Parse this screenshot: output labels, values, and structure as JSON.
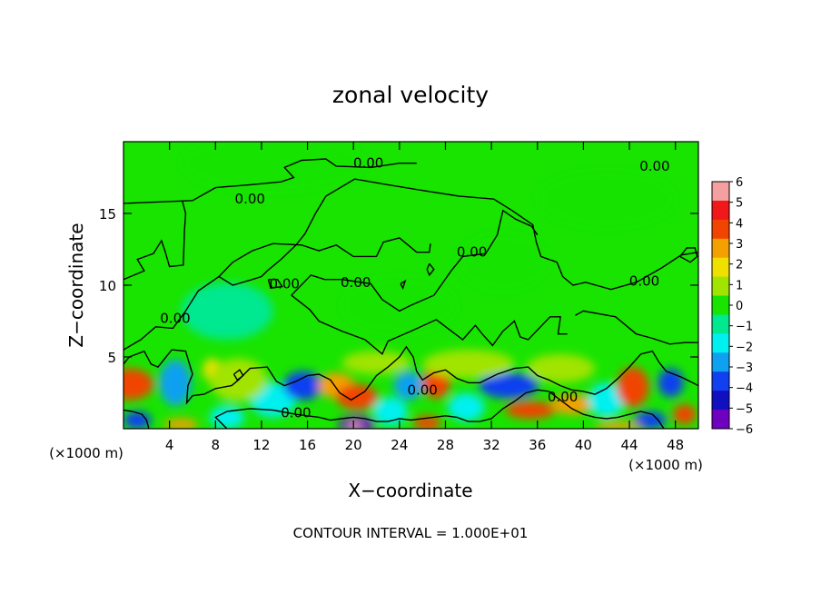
{
  "chart_data": {
    "type": "heatmap",
    "title": "zonal velocity",
    "xlabel": "X−coordinate",
    "ylabel": "Z−coordinate",
    "x_unit": "(×1000 m)",
    "x_unit_right": "(×1000 m)",
    "xlim": [
      0,
      50
    ],
    "ylim": [
      0,
      20
    ],
    "x_ticks": [
      4,
      8,
      12,
      16,
      20,
      24,
      28,
      32,
      36,
      40,
      44,
      48
    ],
    "x_tick_labels": [
      "4",
      "8",
      "12",
      "16",
      "20",
      "24",
      "28",
      "32",
      "36",
      "40",
      "44",
      "48"
    ],
    "y_ticks": [
      5,
      10,
      15
    ],
    "y_tick_labels": [
      "5",
      "10",
      "15"
    ],
    "contour_interval_text": "CONTOUR INTERVAL = 1.000E+01",
    "colorbar": {
      "levels": [
        6,
        5,
        4,
        3,
        2,
        1,
        0,
        -1,
        -2,
        -3,
        -4,
        -5,
        -6
      ],
      "labels": [
        "6",
        "5",
        "4",
        "3",
        "2",
        "1",
        "0",
        "−1",
        "−2",
        "−3",
        "−4",
        "−5",
        "−6"
      ],
      "colors": [
        "#f4a0a0",
        "#f01818",
        "#f04400",
        "#f4a000",
        "#f0e000",
        "#a0e400",
        "#18e400",
        "#00e890",
        "#00f0f0",
        "#10a0f0",
        "#1040f0",
        "#1010c0",
        "#7000c0"
      ]
    },
    "contour_labels": [
      {
        "text": "0.00",
        "x": 21.3,
        "y": 18.5
      },
      {
        "text": "0.00",
        "x": 46.2,
        "y": 18.3
      },
      {
        "text": "0.00",
        "x": 11.0,
        "y": 16.0
      },
      {
        "text": "0.00",
        "x": 30.3,
        "y": 12.3
      },
      {
        "text": "0.00",
        "x": 14.0,
        "y": 10.1
      },
      {
        "text": "0.00",
        "x": 20.2,
        "y": 10.2
      },
      {
        "text": "0.00",
        "x": 45.3,
        "y": 10.3
      },
      {
        "text": "0.00",
        "x": 4.5,
        "y": 7.7
      },
      {
        "text": "0.00",
        "x": 26.0,
        "y": 2.7
      },
      {
        "text": "0.00",
        "x": 38.2,
        "y": 2.2
      },
      {
        "text": "0.00",
        "x": 15.0,
        "y": 1.1
      }
    ],
    "cells": [
      {
        "x": 0.6,
        "y": 3.1,
        "value": 4.2,
        "sx": 2.0,
        "sy": 1.1
      },
      {
        "x": 1.2,
        "y": 0.6,
        "value": -3.8,
        "sx": 1.2,
        "sy": 0.6
      },
      {
        "x": 4.5,
        "y": 3.2,
        "value": -2.6,
        "sx": 1.4,
        "sy": 1.6
      },
      {
        "x": 7.7,
        "y": 4.1,
        "value": 2.4,
        "sx": 0.8,
        "sy": 0.8
      },
      {
        "x": 5.0,
        "y": 0.3,
        "value": 2.6,
        "sx": 1.5,
        "sy": 0.4
      },
      {
        "x": 9.0,
        "y": 0.8,
        "value": -1.6,
        "sx": 1.5,
        "sy": 0.8
      },
      {
        "x": 13.0,
        "y": 2.0,
        "value": -2.0,
        "sx": 2.0,
        "sy": 1.2
      },
      {
        "x": 15.6,
        "y": 3.0,
        "value": -3.8,
        "sx": 1.7,
        "sy": 1.0
      },
      {
        "x": 18.5,
        "y": 3.0,
        "value": 3.2,
        "sx": 1.6,
        "sy": 0.9
      },
      {
        "x": 20.3,
        "y": 2.2,
        "value": 3.6,
        "sx": 1.8,
        "sy": 0.9
      },
      {
        "x": 20.3,
        "y": 0.3,
        "value": -5.6,
        "sx": 1.6,
        "sy": 0.6
      },
      {
        "x": 20.1,
        "y": 0.2,
        "value": 6.0,
        "sx": 0.6,
        "sy": 0.25
      },
      {
        "x": 23.2,
        "y": 1.2,
        "value": -2.0,
        "sx": 1.5,
        "sy": 1.0
      },
      {
        "x": 24.8,
        "y": 3.0,
        "value": -3.5,
        "sx": 1.3,
        "sy": 1.0
      },
      {
        "x": 27.2,
        "y": 3.2,
        "value": 4.0,
        "sx": 1.2,
        "sy": 1.1
      },
      {
        "x": 26.4,
        "y": 0.4,
        "value": 3.5,
        "sx": 1.2,
        "sy": 0.5
      },
      {
        "x": 29.8,
        "y": 1.5,
        "value": -2.0,
        "sx": 1.6,
        "sy": 1.0
      },
      {
        "x": 33.5,
        "y": 3.0,
        "value": -4.3,
        "sx": 2.6,
        "sy": 0.9
      },
      {
        "x": 35.4,
        "y": 1.3,
        "value": 3.6,
        "sx": 2.2,
        "sy": 0.6
      },
      {
        "x": 39.0,
        "y": 1.7,
        "value": 2.6,
        "sx": 1.8,
        "sy": 0.7
      },
      {
        "x": 42.0,
        "y": 2.0,
        "value": -2.0,
        "sx": 1.6,
        "sy": 1.2
      },
      {
        "x": 44.3,
        "y": 2.9,
        "value": 3.8,
        "sx": 1.4,
        "sy": 1.4
      },
      {
        "x": 45.8,
        "y": 0.6,
        "value": -4.0,
        "sx": 1.4,
        "sy": 0.6
      },
      {
        "x": 47.6,
        "y": 3.2,
        "value": -3.8,
        "sx": 1.1,
        "sy": 1.0
      },
      {
        "x": 48.8,
        "y": 1.0,
        "value": 4.0,
        "sx": 1.0,
        "sy": 0.7
      },
      {
        "x": 43.0,
        "y": 0.2,
        "value": 2.5,
        "sx": 2.0,
        "sy": 0.3
      },
      {
        "x": 10.0,
        "y": 3.4,
        "value": 1.2,
        "sx": 2.5,
        "sy": 1.5
      },
      {
        "x": 30.0,
        "y": 4.5,
        "value": 1.0,
        "sx": 4.0,
        "sy": 1.0
      },
      {
        "x": 38.0,
        "y": 4.2,
        "value": 1.2,
        "sx": 3.0,
        "sy": 1.0
      },
      {
        "x": 22.0,
        "y": 4.6,
        "value": 1.2,
        "sx": 3.0,
        "sy": 0.8
      },
      {
        "x": 9.0,
        "y": 8.2,
        "value": -0.6,
        "sx": 4.0,
        "sy": 2.0
      },
      {
        "x": 24.0,
        "y": 8.6,
        "value": -0.5,
        "sx": 5.0,
        "sy": 2.0
      },
      {
        "x": 33.0,
        "y": 11.6,
        "value": -0.4,
        "sx": 4.0,
        "sy": 2.0
      },
      {
        "x": 13.0,
        "y": 18.5,
        "value": 0.3,
        "sx": 8.0,
        "sy": 2.0
      },
      {
        "x": 42.0,
        "y": 16.0,
        "value": -0.3,
        "sx": 6.0,
        "sy": 2.0
      }
    ],
    "contours": [
      [
        [
          0,
          15.7
        ],
        [
          6,
          15.9
        ],
        [
          8,
          16.8
        ],
        [
          11,
          17.0
        ],
        [
          13.7,
          17.2
        ],
        [
          14.8,
          17.5
        ],
        [
          14.0,
          18.2
        ],
        [
          15.5,
          18.7
        ],
        [
          17.6,
          18.8
        ],
        [
          18.5,
          18.3
        ],
        [
          21.5,
          18.2
        ],
        [
          24.0,
          18.5
        ],
        [
          25.5,
          18.5
        ]
      ],
      [
        [
          0,
          10.4
        ],
        [
          1.8,
          11.0
        ],
        [
          1.2,
          11.8
        ],
        [
          2.6,
          12.2
        ],
        [
          3.3,
          13.1
        ],
        [
          3.6,
          12.4
        ],
        [
          4.0,
          11.3
        ],
        [
          5.2,
          11.4
        ],
        [
          5.3,
          13.8
        ],
        [
          5.4,
          15.0
        ],
        [
          5.1,
          15.9
        ]
      ],
      [
        [
          17.6,
          16.2
        ],
        [
          20.1,
          17.4
        ],
        [
          23.0,
          17.0
        ],
        [
          26.0,
          16.6
        ],
        [
          29.2,
          16.2
        ],
        [
          32.2,
          16.0
        ],
        [
          33.8,
          15.2
        ],
        [
          35.6,
          14.2
        ],
        [
          35.9,
          13.0
        ],
        [
          36.3,
          12.0
        ],
        [
          37.7,
          11.6
        ]
      ],
      [
        [
          17.6,
          16.2
        ],
        [
          16.7,
          15.0
        ],
        [
          15.8,
          13.6
        ],
        [
          15.0,
          12.8
        ],
        [
          13.7,
          11.8
        ],
        [
          12.5,
          11.0
        ],
        [
          12.0,
          10.6
        ],
        [
          11.2,
          10.4
        ],
        [
          9.5,
          10.0
        ],
        [
          8.3,
          10.6
        ],
        [
          6.5,
          9.6
        ],
        [
          5.4,
          8.2
        ],
        [
          4.3,
          7.0
        ],
        [
          2.8,
          7.1
        ],
        [
          1.5,
          6.2
        ],
        [
          0,
          5.5
        ]
      ],
      [
        [
          8.3,
          10.6
        ],
        [
          9.5,
          11.6
        ],
        [
          11.2,
          12.4
        ],
        [
          13.0,
          12.9
        ],
        [
          15.5,
          12.8
        ],
        [
          17.0,
          12.4
        ],
        [
          18.5,
          12.8
        ],
        [
          20.0,
          12.0
        ],
        [
          22.0,
          12.0
        ],
        [
          22.6,
          13.0
        ],
        [
          24.0,
          13.3
        ],
        [
          25.5,
          12.3
        ],
        [
          26.6,
          12.3
        ],
        [
          26.7,
          12.9
        ]
      ],
      [
        [
          14.6,
          9.3
        ],
        [
          16.3,
          10.7
        ],
        [
          17.5,
          10.4
        ],
        [
          19.0,
          10.4
        ],
        [
          21.5,
          10.1
        ],
        [
          22.5,
          9.0
        ],
        [
          24.0,
          8.2
        ],
        [
          25.0,
          8.6
        ],
        [
          27.0,
          9.3
        ],
        [
          28.5,
          11.0
        ],
        [
          29.5,
          12.0
        ],
        [
          31.5,
          12.2
        ],
        [
          32.5,
          13.5
        ],
        [
          33.0,
          15.2
        ],
        [
          34.1,
          14.6
        ],
        [
          35.5,
          14.1
        ],
        [
          36.0,
          13.5
        ]
      ],
      [
        [
          14.6,
          9.3
        ],
        [
          16.2,
          8.3
        ],
        [
          17.0,
          7.5
        ],
        [
          19.0,
          6.8
        ],
        [
          21.0,
          6.2
        ],
        [
          22.5,
          5.2
        ],
        [
          23.0,
          6.1
        ],
        [
          25.0,
          6.8
        ],
        [
          27.2,
          7.6
        ],
        [
          29.5,
          6.2
        ],
        [
          30.6,
          7.2
        ],
        [
          31.2,
          6.6
        ],
        [
          32.1,
          5.8
        ],
        [
          33.0,
          6.8
        ],
        [
          34.0,
          7.5
        ],
        [
          34.5,
          6.4
        ],
        [
          35.2,
          6.2
        ],
        [
          37.1,
          7.8
        ],
        [
          38.0,
          7.8
        ],
        [
          37.8,
          6.6
        ],
        [
          38.6,
          6.6
        ]
      ],
      [
        [
          37.7,
          11.6
        ],
        [
          38.2,
          10.6
        ],
        [
          39.1,
          10.0
        ],
        [
          40.2,
          10.2
        ],
        [
          42.4,
          9.7
        ],
        [
          44.6,
          10.2
        ],
        [
          46.8,
          11.2
        ],
        [
          48.5,
          12.1
        ],
        [
          50,
          12.3
        ]
      ],
      [
        [
          39.3,
          7.9
        ],
        [
          40.0,
          8.2
        ],
        [
          42.8,
          7.8
        ],
        [
          44.6,
          6.6
        ],
        [
          46.0,
          6.3
        ],
        [
          47.5,
          5.9
        ],
        [
          48.8,
          6.0
        ],
        [
          50,
          6.0
        ]
      ],
      [
        [
          0,
          4.5
        ],
        [
          0.5,
          5.0
        ],
        [
          1.8,
          5.4
        ],
        [
          2.4,
          4.5
        ],
        [
          3.0,
          4.3
        ],
        [
          3.6,
          4.9
        ],
        [
          4.2,
          5.5
        ],
        [
          5.4,
          5.4
        ],
        [
          6.0,
          3.8
        ],
        [
          5.6,
          3.0
        ],
        [
          5.5,
          1.8
        ],
        [
          6.0,
          2.3
        ],
        [
          7.0,
          2.4
        ],
        [
          8.0,
          2.8
        ],
        [
          9.4,
          3.0
        ],
        [
          10.0,
          3.4
        ],
        [
          11.0,
          4.2
        ],
        [
          12.5,
          4.3
        ],
        [
          13.3,
          3.3
        ],
        [
          14.0,
          3.0
        ],
        [
          15.0,
          3.3
        ],
        [
          16.0,
          3.7
        ],
        [
          17.0,
          3.8
        ],
        [
          18.0,
          3.4
        ],
        [
          18.8,
          2.5
        ],
        [
          19.8,
          2.0
        ],
        [
          21.0,
          2.6
        ],
        [
          22.0,
          3.7
        ],
        [
          23.0,
          4.3
        ],
        [
          24.0,
          5.0
        ],
        [
          24.6,
          5.7
        ],
        [
          25.2,
          5.0
        ],
        [
          25.5,
          4.0
        ],
        [
          26.0,
          3.4
        ],
        [
          27.0,
          3.9
        ],
        [
          28.0,
          4.1
        ],
        [
          29.0,
          3.5
        ],
        [
          30.0,
          3.2
        ],
        [
          31.0,
          3.2
        ],
        [
          32.5,
          3.8
        ],
        [
          34.0,
          4.2
        ],
        [
          35.2,
          4.3
        ],
        [
          36.0,
          3.7
        ],
        [
          37.0,
          3.4
        ],
        [
          38.0,
          3.0
        ],
        [
          39.0,
          2.7
        ],
        [
          40.0,
          2.6
        ],
        [
          41.0,
          2.4
        ],
        [
          42.0,
          2.8
        ],
        [
          43.0,
          3.5
        ],
        [
          44.0,
          4.3
        ],
        [
          45.0,
          5.2
        ],
        [
          46.0,
          5.4
        ],
        [
          46.6,
          4.6
        ],
        [
          47.2,
          4.0
        ],
        [
          48.5,
          3.6
        ],
        [
          49.5,
          3.2
        ],
        [
          50,
          3.0
        ]
      ],
      [
        [
          9.0,
          0
        ],
        [
          8.0,
          0.8
        ],
        [
          9.0,
          1.2
        ],
        [
          11.0,
          1.4
        ],
        [
          13.0,
          1.3
        ],
        [
          15.0,
          1.0
        ],
        [
          17.0,
          0.8
        ],
        [
          18.0,
          0.6
        ],
        [
          19.0,
          0.7
        ],
        [
          20.0,
          0.8
        ],
        [
          21.0,
          0.7
        ],
        [
          22.0,
          0.5
        ],
        [
          23.0,
          0.5
        ],
        [
          24.0,
          0.7
        ],
        [
          25.0,
          0.6
        ],
        [
          26.0,
          0.7
        ],
        [
          27.0,
          0.8
        ],
        [
          28.0,
          0.9
        ],
        [
          29.0,
          0.8
        ],
        [
          30.0,
          0.5
        ],
        [
          31.0,
          0.5
        ],
        [
          32.0,
          0.7
        ],
        [
          33.0,
          1.4
        ],
        [
          34.0,
          1.9
        ],
        [
          35.0,
          2.5
        ],
        [
          36.0,
          2.7
        ],
        [
          37.0,
          2.6
        ],
        [
          38.0,
          2.0
        ],
        [
          39.0,
          1.4
        ],
        [
          40.0,
          1.0
        ],
        [
          41.0,
          0.8
        ],
        [
          42.0,
          0.7
        ],
        [
          43.0,
          0.8
        ],
        [
          44.0,
          1.0
        ],
        [
          45.0,
          1.2
        ],
        [
          46.0,
          1.0
        ],
        [
          46.5,
          0.6
        ],
        [
          47.0,
          0
        ]
      ],
      [
        [
          0,
          1.3
        ],
        [
          0.8,
          1.2
        ],
        [
          1.6,
          1.0
        ],
        [
          2.0,
          0.6
        ],
        [
          2.2,
          0
        ]
      ],
      [
        [
          12.6,
          10.4
        ],
        [
          13.4,
          10.4
        ],
        [
          13.8,
          9.9
        ],
        [
          12.8,
          9.8
        ],
        [
          12.6,
          10.4
        ]
      ],
      [
        [
          24.1,
          10.1
        ],
        [
          24.5,
          10.3
        ],
        [
          24.3,
          9.8
        ],
        [
          24.1,
          10.1
        ]
      ],
      [
        [
          26.6,
          11.5
        ],
        [
          27.0,
          11.1
        ],
        [
          26.6,
          10.7
        ],
        [
          26.4,
          11.1
        ],
        [
          26.6,
          11.5
        ]
      ],
      [
        [
          9.6,
          3.8
        ],
        [
          10.1,
          4.1
        ],
        [
          10.4,
          3.7
        ],
        [
          9.9,
          3.4
        ],
        [
          9.6,
          3.8
        ]
      ],
      [
        [
          48.4,
          12.0
        ],
        [
          49.0,
          12.6
        ],
        [
          49.7,
          12.6
        ],
        [
          49.9,
          12.0
        ],
        [
          49.3,
          11.6
        ],
        [
          48.4,
          12.0
        ]
      ]
    ]
  }
}
